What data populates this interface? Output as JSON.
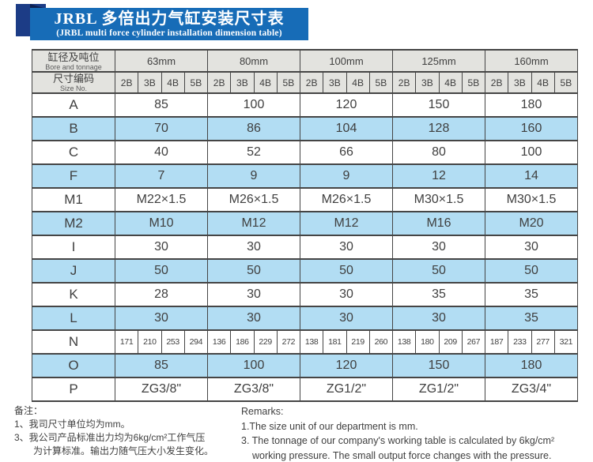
{
  "header": {
    "title_zh": "JRBL 多倍出力气缸安装尺寸表",
    "title_en": "(JRBL multi force cylinder installation dimension table)"
  },
  "table": {
    "corner": {
      "zh": "缸径及吨位",
      "en": "Bore and tonnage"
    },
    "size_no": {
      "zh": "尺寸编码",
      "en": "Size No."
    },
    "bore_groups": [
      "63mm",
      "80mm",
      "100mm",
      "125mm",
      "160mm"
    ],
    "size_codes": [
      "2B",
      "3B",
      "4B",
      "5B"
    ],
    "rows": [
      {
        "label": "A",
        "values": [
          "85",
          "100",
          "120",
          "150",
          "180"
        ]
      },
      {
        "label": "B",
        "values": [
          "70",
          "86",
          "104",
          "128",
          "160"
        ]
      },
      {
        "label": "C",
        "values": [
          "40",
          "52",
          "66",
          "80",
          "100"
        ]
      },
      {
        "label": "F",
        "values": [
          "7",
          "9",
          "9",
          "12",
          "14"
        ]
      },
      {
        "label": "M1",
        "values": [
          "M22×1.5",
          "M26×1.5",
          "M26×1.5",
          "M30×1.5",
          "M30×1.5"
        ]
      },
      {
        "label": "M2",
        "values": [
          "M10",
          "M12",
          "M12",
          "M16",
          "M20"
        ]
      },
      {
        "label": "I",
        "values": [
          "30",
          "30",
          "30",
          "30",
          "30"
        ]
      },
      {
        "label": "J",
        "values": [
          "50",
          "50",
          "50",
          "50",
          "50"
        ]
      },
      {
        "label": "K",
        "values": [
          "28",
          "30",
          "30",
          "35",
          "35"
        ]
      },
      {
        "label": "L",
        "values": [
          "30",
          "30",
          "30",
          "30",
          "35"
        ]
      },
      {
        "label": "N",
        "values": [
          [
            "171",
            "210",
            "253",
            "294"
          ],
          [
            "136",
            "186",
            "229",
            "272"
          ],
          [
            "138",
            "181",
            "219",
            "260"
          ],
          [
            "138",
            "180",
            "209",
            "267"
          ],
          [
            "187",
            "233",
            "277",
            "321"
          ]
        ]
      },
      {
        "label": "O",
        "values": [
          "85",
          "100",
          "120",
          "150",
          "180"
        ]
      },
      {
        "label": "P",
        "values": [
          "ZG3/8\"",
          "ZG3/8\"",
          "ZG1/2\"",
          "ZG1/2\"",
          "ZG3/4\""
        ]
      }
    ]
  },
  "footnotes": {
    "zh": {
      "title": "备注：",
      "lines": [
        "1、我司尺寸单位均为mm。",
        "3、我公司产品标准出力均为6kg/cm²工作气压",
        "为计算标准。输出力随气压大小发生变化。"
      ]
    },
    "en": {
      "title": "Remarks:",
      "lines": [
        "1.The size unit of our department is mm.",
        "3. The tonnage of our company's working table is calculated by 6kg/cm²",
        "working pressure. The small output force changes with the pressure."
      ]
    }
  },
  "colors": {
    "banner_blue": "#176cb7",
    "navy_square": "#1c3c86",
    "fold_dark": "#0d2152",
    "header_gray": "#e3e3df",
    "row_blue": "#b2ddf3",
    "grid_line": "#454545",
    "text": "#3f3f3f"
  }
}
